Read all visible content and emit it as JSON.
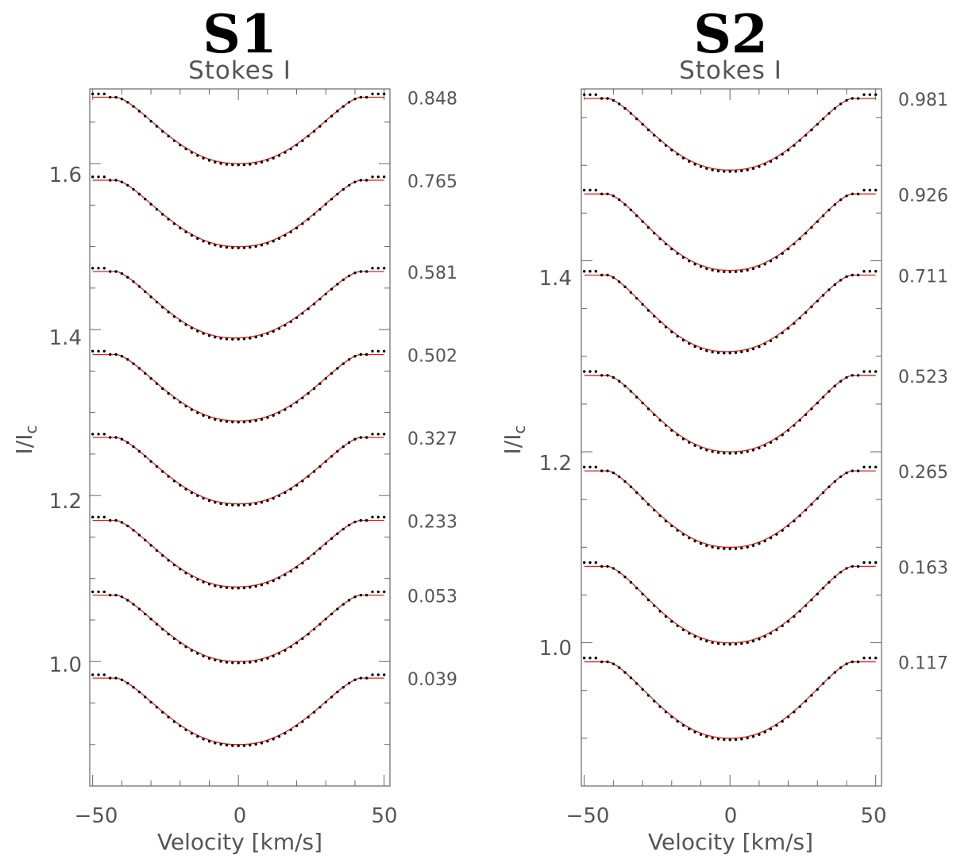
{
  "chart_data": [
    {
      "type": "line",
      "title": "S1",
      "subtitle": "Stokes I",
      "xlabel": "Velocity [km/s]",
      "ylabel_main": "I/I",
      "ylabel_sub": "c",
      "xlim": [
        -51,
        52
      ],
      "ylim": [
        0.85,
        1.69
      ],
      "xticks": [
        -50,
        0,
        50
      ],
      "xtick_labels": [
        "−50",
        "0",
        "50"
      ],
      "yticks": [
        1.0,
        1.2,
        1.4,
        1.6
      ],
      "ytick_labels": [
        "1.0",
        "1.2",
        "1.4",
        "1.6"
      ],
      "series_names": [
        "observed (dotted)",
        "model (red)"
      ],
      "profiles": [
        {
          "phase": "0.848",
          "offset": 1.68,
          "depth": 0.08,
          "asym": 0.0
        },
        {
          "phase": "0.765",
          "offset": 1.58,
          "depth": 0.08,
          "asym": 0.0
        },
        {
          "phase": "0.581",
          "offset": 1.47,
          "depth": 0.08,
          "asym": 0.005
        },
        {
          "phase": "0.502",
          "offset": 1.37,
          "depth": 0.08,
          "asym": 0.0
        },
        {
          "phase": "0.327",
          "offset": 1.27,
          "depth": 0.08,
          "asym": 0.0
        },
        {
          "phase": "0.233",
          "offset": 1.17,
          "depth": 0.08,
          "asym": 0.003
        },
        {
          "phase": "0.053",
          "offset": 1.08,
          "depth": 0.08,
          "asym": 0.0
        },
        {
          "phase": "0.039",
          "offset": 0.98,
          "depth": 0.08,
          "asym": 0.0
        }
      ]
    },
    {
      "type": "line",
      "title": "S2",
      "subtitle": "Stokes I",
      "xlabel": "Velocity [km/s]",
      "ylabel_main": "I/I",
      "ylabel_sub": "c",
      "xlim": [
        -51,
        52
      ],
      "ylim": [
        0.85,
        1.58
      ],
      "xticks": [
        -50,
        0,
        50
      ],
      "xtick_labels": [
        "−50",
        "0",
        "50"
      ],
      "yticks": [
        1.0,
        1.2,
        1.4
      ],
      "ytick_labels": [
        "1.0",
        "1.2",
        "1.4"
      ],
      "series_names": [
        "observed (dotted)",
        "model (red)"
      ],
      "profiles": [
        {
          "phase": "0.981",
          "offset": 1.57,
          "depth": 0.075,
          "asym": 0.0
        },
        {
          "phase": "0.926",
          "offset": 1.47,
          "depth": 0.08,
          "asym": 0.0
        },
        {
          "phase": "0.711",
          "offset": 1.385,
          "depth": 0.08,
          "asym": 0.005
        },
        {
          "phase": "0.523",
          "offset": 1.28,
          "depth": 0.08,
          "asym": 0.0
        },
        {
          "phase": "0.265",
          "offset": 1.18,
          "depth": 0.08,
          "asym": 0.0
        },
        {
          "phase": "0.163",
          "offset": 1.08,
          "depth": 0.08,
          "asym": 0.0
        },
        {
          "phase": "0.117",
          "offset": 0.98,
          "depth": 0.08,
          "asym": 0.0
        }
      ]
    }
  ]
}
